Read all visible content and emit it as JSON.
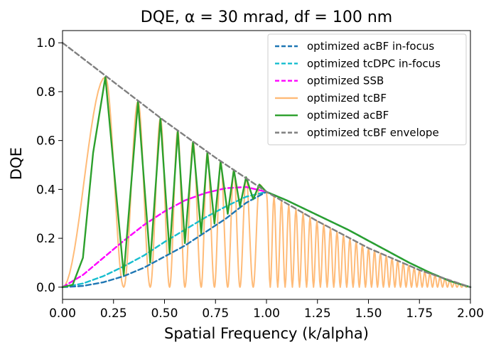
{
  "chart_data": {
    "type": "line",
    "title": "DQE,  α = 30 mrad,  df = 100 nm",
    "xlabel": "Spatial Frequency (k/alpha)",
    "ylabel": "DQE",
    "xlim": [
      0,
      2
    ],
    "ylim": [
      -0.05,
      1.05
    ],
    "x_ticks": [
      0.0,
      0.25,
      0.5,
      0.75,
      1.0,
      1.25,
      1.5,
      1.75,
      2.0
    ],
    "x_tick_labels": [
      "0.00",
      "0.25",
      "0.50",
      "0.75",
      "1.00",
      "1.25",
      "1.50",
      "1.75",
      "2.00"
    ],
    "y_ticks": [
      0.0,
      0.2,
      0.4,
      0.6,
      0.8,
      1.0
    ],
    "y_tick_labels": [
      "0.0",
      "0.2",
      "0.4",
      "0.6",
      "0.8",
      "1.0"
    ],
    "legend_position": "top-right",
    "series": [
      {
        "name": "optimized acBF in-focus",
        "color": "#1f77b4",
        "dash": "dashed",
        "x": [
          0.0,
          0.1,
          0.2,
          0.3,
          0.4,
          0.5,
          0.6,
          0.7,
          0.8,
          0.9,
          1.0,
          1.1,
          1.2,
          1.3,
          1.4,
          1.5,
          1.6,
          1.7,
          1.8,
          1.9,
          2.0
        ],
        "y": [
          0.0,
          0.005,
          0.02,
          0.045,
          0.08,
          0.125,
          0.17,
          0.225,
          0.28,
          0.345,
          0.39,
          0.355,
          0.315,
          0.275,
          0.235,
          0.19,
          0.145,
          0.1,
          0.06,
          0.025,
          0.0
        ]
      },
      {
        "name": "optimized tcDPC in-focus",
        "color": "#17becf",
        "dash": "dashed",
        "x": [
          0.0,
          0.1,
          0.2,
          0.3,
          0.4,
          0.5,
          0.6,
          0.7,
          0.8,
          0.9,
          1.0,
          1.1,
          1.2,
          1.3,
          1.4,
          1.5,
          1.6,
          1.7,
          1.8,
          1.9,
          2.0
        ],
        "y": [
          0.0,
          0.015,
          0.045,
          0.085,
          0.13,
          0.185,
          0.235,
          0.285,
          0.33,
          0.37,
          0.39,
          0.355,
          0.315,
          0.275,
          0.235,
          0.19,
          0.145,
          0.1,
          0.06,
          0.025,
          0.0
        ]
      },
      {
        "name": "optimized SSB",
        "color": "#ff00ff",
        "dash": "dashed",
        "x": [
          0.0,
          0.1,
          0.2,
          0.3,
          0.4,
          0.5,
          0.6,
          0.7,
          0.8,
          0.9,
          1.0
        ],
        "y": [
          0.0,
          0.05,
          0.12,
          0.19,
          0.255,
          0.31,
          0.355,
          0.385,
          0.405,
          0.41,
          0.39
        ]
      },
      {
        "name": "optimized tcBF",
        "color": "#ffbb78",
        "dash": "solid",
        "oscillating": true,
        "envelope_of": "optimized tcBF envelope",
        "x": [
          0.0,
          0.21,
          0.3,
          0.37,
          0.43,
          0.48,
          0.525,
          0.565,
          0.6,
          0.64,
          0.68,
          0.71,
          0.745,
          0.775,
          0.81,
          0.84,
          0.87,
          0.9,
          0.935,
          0.965,
          1.0,
          1.5,
          2.0
        ],
        "y": [
          0.0,
          0.86,
          0.0,
          0.76,
          0.0,
          0.69,
          0.0,
          0.64,
          0.0,
          0.595,
          0.0,
          0.55,
          0.0,
          0.515,
          0.0,
          0.48,
          0.0,
          0.45,
          0.0,
          0.42,
          0.39,
          0.19,
          0.0
        ]
      },
      {
        "name": "optimized acBF",
        "color": "#2ca02c",
        "dash": "solid",
        "x": [
          0.0,
          0.05,
          0.1,
          0.15,
          0.21,
          0.3,
          0.37,
          0.43,
          0.48,
          0.525,
          0.565,
          0.6,
          0.64,
          0.68,
          0.71,
          0.745,
          0.775,
          0.81,
          0.84,
          0.87,
          0.9,
          0.935,
          0.965,
          1.0,
          1.1,
          1.2,
          1.3,
          1.4,
          1.5,
          1.6,
          1.7,
          1.8,
          1.9,
          2.0
        ],
        "y": [
          0.0,
          0.01,
          0.12,
          0.55,
          0.86,
          0.05,
          0.76,
          0.1,
          0.69,
          0.14,
          0.64,
          0.18,
          0.595,
          0.22,
          0.55,
          0.26,
          0.515,
          0.3,
          0.48,
          0.33,
          0.45,
          0.36,
          0.42,
          0.39,
          0.355,
          0.315,
          0.275,
          0.235,
          0.19,
          0.145,
          0.1,
          0.06,
          0.025,
          0.0
        ]
      },
      {
        "name": "optimized tcBF envelope",
        "color": "#7f7f7f",
        "dash": "dashed",
        "x": [
          0.0,
          0.25,
          0.5,
          0.75,
          1.0,
          1.25,
          1.5,
          1.75,
          2.0
        ],
        "y": [
          1.0,
          0.84,
          0.68,
          0.53,
          0.39,
          0.27,
          0.16,
          0.07,
          0.0
        ]
      }
    ]
  }
}
